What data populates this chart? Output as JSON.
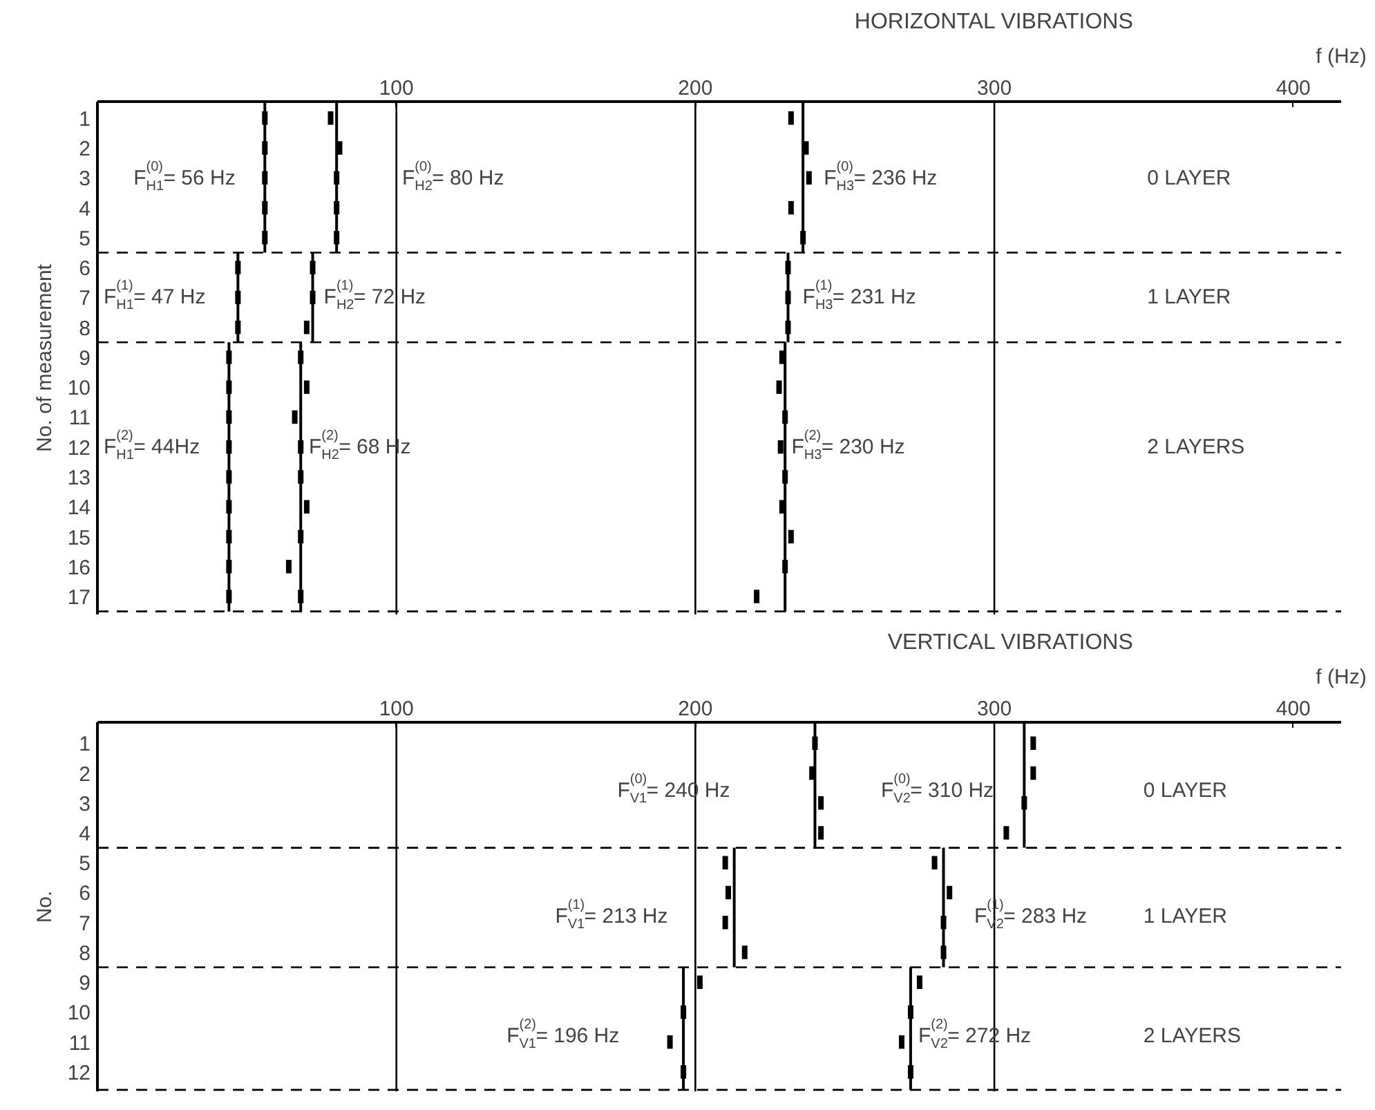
{
  "chart_data": [
    {
      "type": "line",
      "title": "HORIZONTAL VIBRATIONS",
      "xlabel": "f (Hz)",
      "ylabel": "No. of measurement",
      "xlim": [
        0,
        416
      ],
      "xticks": [
        100,
        200,
        300,
        400
      ],
      "ylim": [
        17.6,
        0.45
      ],
      "yticks": [
        1,
        2,
        3,
        4,
        5,
        6,
        7,
        8,
        9,
        10,
        11,
        12,
        13,
        14,
        15,
        16,
        17
      ],
      "grid": false,
      "series": [
        {
          "color": "#000000",
          "x": [
            56,
            56
          ],
          "values": [
            0.45,
            5.5
          ]
        },
        {
          "color": "#000000",
          "x": [
            80,
            80
          ],
          "values": [
            0.45,
            5.5
          ]
        },
        {
          "color": "#000000",
          "x": [
            236,
            236
          ],
          "values": [
            0.45,
            5.5
          ]
        },
        {
          "color": "#000000",
          "x": [
            47,
            47
          ],
          "values": [
            5.5,
            8.5
          ]
        },
        {
          "color": "#000000",
          "x": [
            72,
            72
          ],
          "values": [
            5.5,
            8.5
          ]
        },
        {
          "color": "#000000",
          "x": [
            231,
            231
          ],
          "values": [
            5.5,
            8.5
          ]
        },
        {
          "color": "#000000",
          "x": [
            44,
            44
          ],
          "values": [
            8.5,
            17.5
          ]
        },
        {
          "color": "#000000",
          "x": [
            68,
            68
          ],
          "values": [
            8.5,
            17.5
          ]
        },
        {
          "color": "#000000",
          "x": [
            230,
            230
          ],
          "values": [
            8.5,
            17.5
          ]
        },
        {
          "type": "scatter",
          "color": "#000000",
          "x": [
            56,
            56,
            56,
            56,
            56,
            78,
            81,
            80,
            80,
            80,
            232,
            237,
            238,
            232,
            236,
            47,
            47,
            47,
            72,
            72,
            70,
            231,
            231,
            231,
            44,
            44,
            44,
            44,
            44,
            44,
            44,
            44,
            44,
            68,
            70,
            66,
            68,
            68,
            70,
            68,
            64,
            68,
            229,
            228,
            230,
            228.5,
            230,
            229,
            232,
            230,
            220.5
          ],
          "values": [
            1,
            2,
            3,
            4,
            5,
            1,
            2,
            3,
            4,
            5,
            1,
            2,
            3,
            4,
            5,
            6,
            7,
            8,
            6,
            7,
            8,
            6,
            7,
            8,
            9,
            10,
            11,
            12,
            13,
            14,
            15,
            16,
            17,
            9,
            10,
            11,
            12,
            13,
            14,
            15,
            16,
            17,
            9,
            10,
            11,
            12,
            13,
            14,
            15,
            16,
            17
          ]
        }
      ],
      "ref_lines": [
        {
          "axis": "y",
          "value": 5.5,
          "line_style": "dashed"
        },
        {
          "axis": "y",
          "value": 8.5,
          "line_style": "dashed"
        },
        {
          "axis": "y",
          "value": 17.5,
          "line_style": "dashed"
        },
        {
          "axis": "x",
          "value": 100
        },
        {
          "axis": "x",
          "value": 200
        },
        {
          "axis": "x",
          "value": 300
        }
      ],
      "annotations": [
        "F$_{H1}$$^{(0)}$= 56 Hz",
        "F$_{H2}$$^{(0)}$= 80 Hz",
        "F$_{H3}$$^{(0)}$= 236 Hz",
        "0 LAYER",
        "F$_{H1}$$^{(1)}$= 47 Hz",
        "F$_{H2}$$^{(1)}$= 72 Hz",
        "F$_{H3}$$^{(1)}$= 231 Hz",
        "1 LAYER",
        "F$_{H1}$$^{(2)}$= 44Hz",
        "F$_{H2}$$^{(2)}$= 68 Hz",
        "F$_{H3}$$^{(2)}$= 230 Hz",
        "2 LAYERS"
      ]
    },
    {
      "type": "line",
      "title": "VERTICAL VIBRATIONS",
      "xlabel": "f (Hz)",
      "ylabel": "No.",
      "xlim": [
        0,
        416
      ],
      "xticks": [
        100,
        200,
        300,
        400
      ],
      "ylim": [
        12.65,
        0.3
      ],
      "yticks": [
        1,
        2,
        3,
        4,
        5,
        6,
        7,
        8,
        9,
        10,
        11,
        12
      ],
      "grid": false,
      "series": [
        {
          "color": "#000000",
          "x": [
            240,
            240
          ],
          "values": [
            0.3,
            4.5
          ]
        },
        {
          "color": "#000000",
          "x": [
            310,
            310
          ],
          "values": [
            0.3,
            4.5
          ]
        },
        {
          "color": "#000000",
          "x": [
            213,
            213
          ],
          "values": [
            4.5,
            8.5
          ]
        },
        {
          "color": "#000000",
          "x": [
            283,
            283
          ],
          "values": [
            4.5,
            8.5
          ]
        },
        {
          "color": "#000000",
          "x": [
            196,
            196
          ],
          "values": [
            8.5,
            12.6
          ]
        },
        {
          "color": "#000000",
          "x": [
            272,
            272
          ],
          "values": [
            8.5,
            12.6
          ]
        },
        {
          "type": "scatter",
          "color": "#000000",
          "x": [
            240,
            239,
            242,
            242,
            313,
            313,
            310,
            304,
            210,
            211,
            210,
            216.5,
            280,
            285,
            283,
            283,
            201.5,
            196,
            191.5,
            196,
            275,
            272,
            269,
            272
          ],
          "values": [
            1,
            2,
            3,
            4,
            1,
            2,
            3,
            4,
            5,
            6,
            7,
            8,
            5,
            6,
            7,
            8,
            9,
            10,
            11,
            12,
            9,
            10,
            11,
            12
          ]
        }
      ],
      "ref_lines": [
        {
          "axis": "y",
          "value": 4.5,
          "line_style": "dashed"
        },
        {
          "axis": "y",
          "value": 8.5,
          "line_style": "dashed"
        },
        {
          "axis": "y",
          "value": 12.6,
          "line_style": "dashed"
        },
        {
          "axis": "x",
          "value": 100
        },
        {
          "axis": "x",
          "value": 200
        },
        {
          "axis": "x",
          "value": 300
        }
      ],
      "annotations": [
        "F$_{V1}$$^{(0)}$= 240 Hz",
        "F$_{V2}$$^{(0)}$= 310 Hz",
        "0 LAYER",
        "F$_{V1}$$^{(1)}$= 213 Hz",
        "F$_{V2}$$^{(1)}$= 283 Hz",
        "1 LAYER",
        "F$_{V1}$$^{(2)}$= 196 Hz",
        "F$_{V2}$$^{(2)}$= 272 Hz",
        "2 LAYERS"
      ]
    }
  ]
}
